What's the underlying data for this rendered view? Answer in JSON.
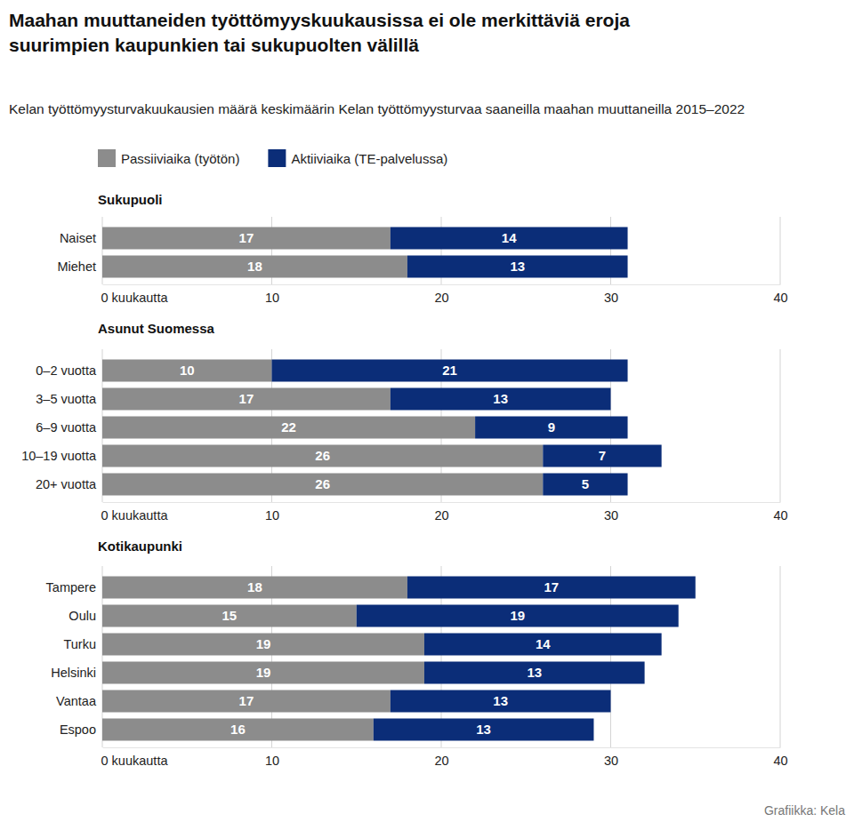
{
  "title": "Maahan muuttaneiden työttömyyskuukausissa ei ole merkittäviä eroja\nsuurimpien kaupunkien tai sukupuolten välillä",
  "subtitle": "Kelan työttömyysturvakuukausien määrä keskimäärin Kelan työttömyysturvaa saaneilla maahan muuttaneilla 2015–2022",
  "source": "Grafiikka: Kela",
  "chart_data": [
    {
      "type": "bar",
      "orientation": "horizontal",
      "stacked": true,
      "data_labels": true,
      "grid": true,
      "legend": "top-left",
      "title": "Sukupuoli",
      "categories": [
        "Naiset",
        "Miehet"
      ],
      "series": [
        {
          "name": "Passiiviaika (työtön)",
          "color": "#8c8c8c",
          "values": [
            17,
            18
          ]
        },
        {
          "name": "Aktiiviaika (TE-palvelussa)",
          "color": "#0b2d78",
          "values": [
            14,
            13
          ]
        }
      ],
      "xlim": [
        0,
        40
      ],
      "xticks": [
        {
          "value": 0,
          "label": "0 kuukautta"
        },
        10,
        20,
        30,
        40
      ]
    },
    {
      "type": "bar",
      "orientation": "horizontal",
      "stacked": true,
      "data_labels": true,
      "grid": true,
      "title": "Asunut Suomessa",
      "categories": [
        "0–2 vuotta",
        "3–5 vuotta",
        "6–9 vuotta",
        "10–19 vuotta",
        "20+ vuotta"
      ],
      "series": [
        {
          "color": "#8c8c8c",
          "values": [
            10,
            17,
            22,
            26,
            26
          ]
        },
        {
          "color": "#0b2d78",
          "values": [
            21,
            13,
            9,
            7,
            5
          ]
        }
      ],
      "xlim": [
        0,
        40
      ],
      "xticks": [
        {
          "value": 0,
          "label": "0 kuukautta"
        },
        10,
        20,
        30,
        40
      ]
    },
    {
      "type": "bar",
      "orientation": "horizontal",
      "stacked": true,
      "data_labels": true,
      "grid": true,
      "title": "Kotikaupunki",
      "categories": [
        "Tampere",
        "Oulu",
        "Turku",
        "Helsinki",
        "Vantaa",
        "Espoo"
      ],
      "series": [
        {
          "color": "#8c8c8c",
          "values": [
            18,
            15,
            19,
            19,
            17,
            16
          ]
        },
        {
          "color": "#0b2d78",
          "values": [
            17,
            19,
            14,
            13,
            13,
            13
          ]
        }
      ],
      "xlim": [
        0,
        40
      ],
      "xticks": [
        {
          "value": 0,
          "label": "0 kuukautta"
        },
        10,
        20,
        30,
        40
      ]
    }
  ]
}
